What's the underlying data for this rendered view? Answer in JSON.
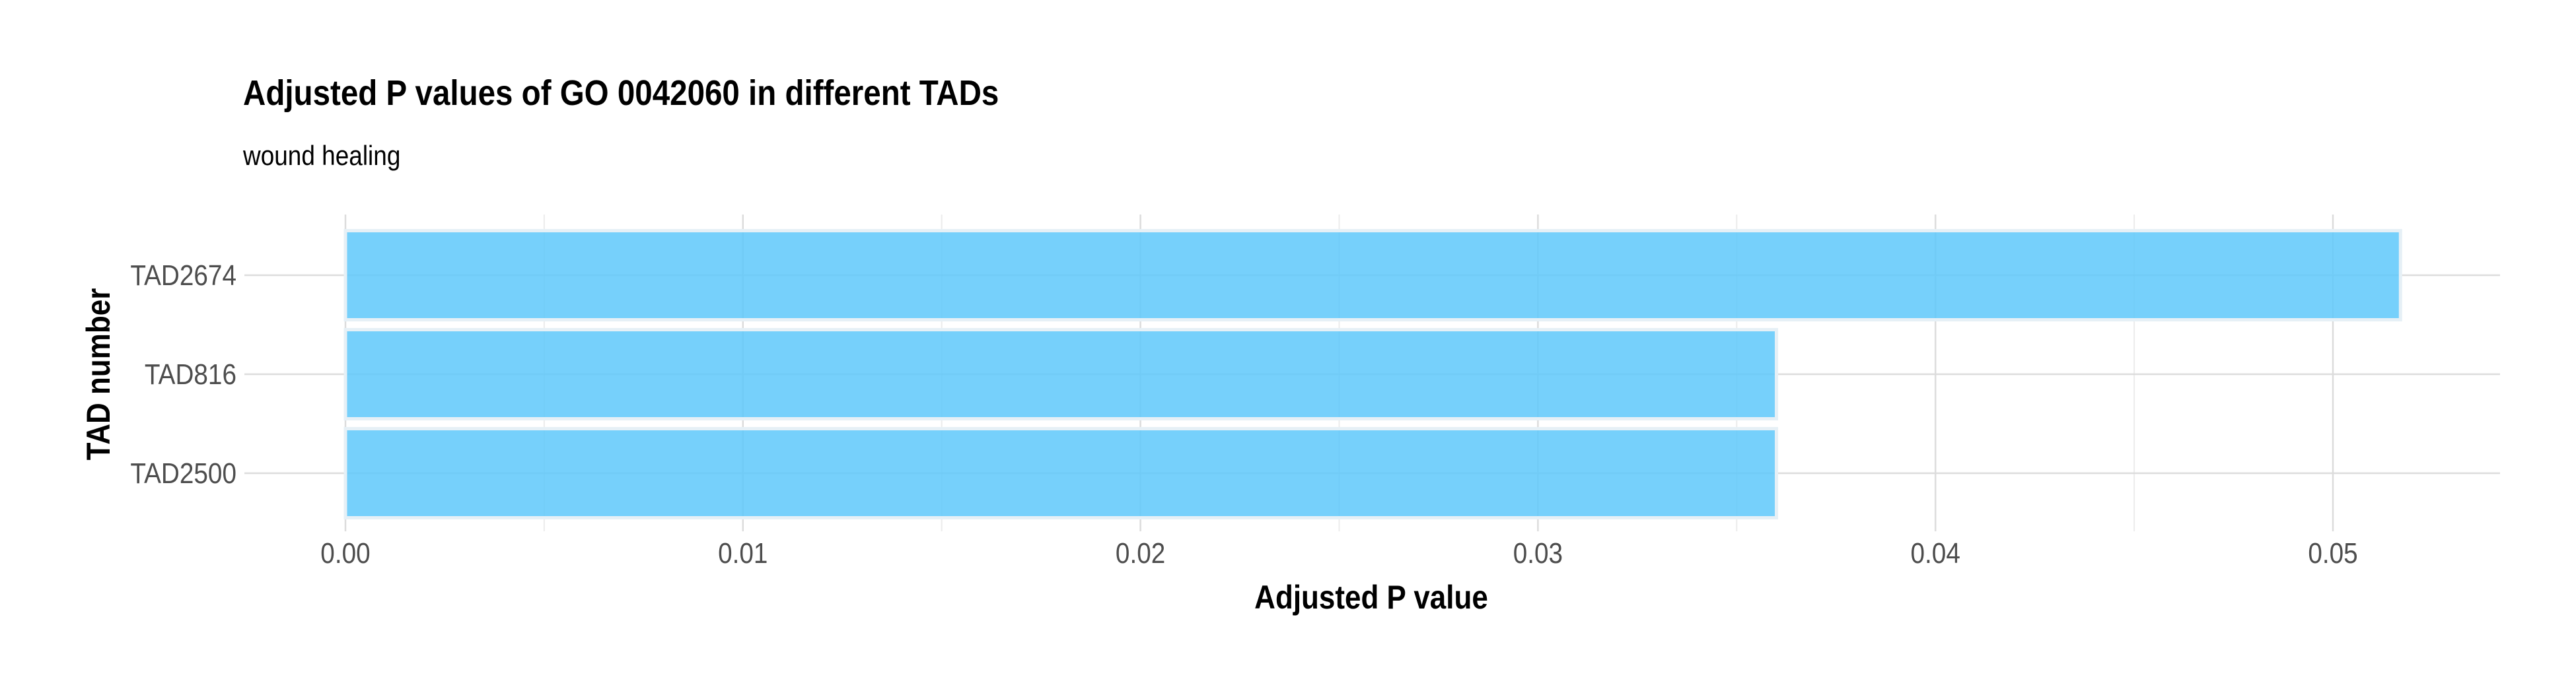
{
  "chart_data": {
    "type": "bar",
    "orientation": "horizontal",
    "title": "Adjusted P values of GO 0042060 in different TADs",
    "subtitle": "wound healing",
    "xlabel": "Adjusted P value",
    "ylabel": "TAD number",
    "categories": [
      "TAD2674",
      "TAD816",
      "TAD2500"
    ],
    "values": [
      0.0517,
      0.036,
      0.036
    ],
    "xlim": [
      0,
      0.0543
    ],
    "xticks": [
      0.0,
      0.01,
      0.02,
      0.03,
      0.04,
      0.05
    ],
    "xtick_labels": [
      "0.00",
      "0.01",
      "0.02",
      "0.03",
      "0.04",
      "0.05"
    ],
    "grid": true,
    "legend": "none",
    "bar_color": "#5ec8fa"
  }
}
